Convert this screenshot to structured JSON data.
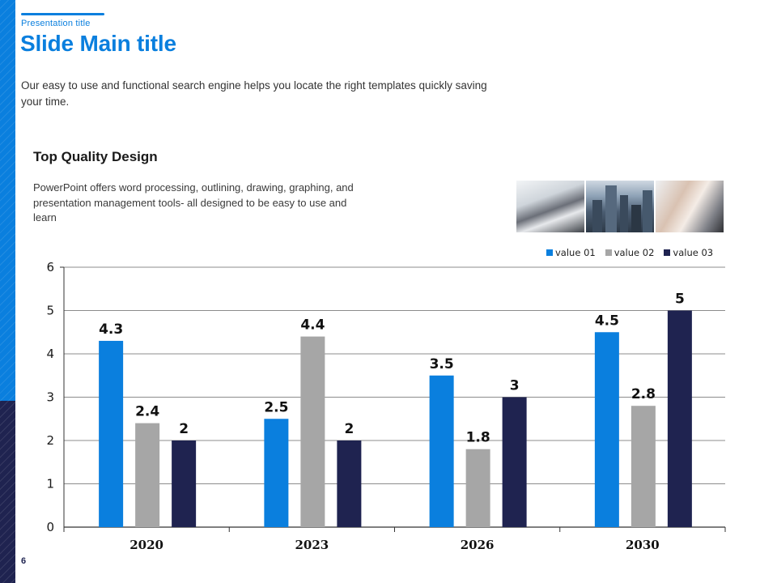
{
  "header": {
    "presentation_title": "Presentation title",
    "main_title": "Slide Main title",
    "intro_text": "Our easy to use and functional search engine helps you locate the right templates quickly saving your time."
  },
  "section": {
    "title": "Top Quality Design",
    "body": "PowerPoint offers word processing, outlining, drawing, graphing, and presentation management tools- all designed to be easy to use and learn"
  },
  "images": [
    "business-team-photo",
    "city-skyline-photo",
    "applause-photo"
  ],
  "page_number": "6",
  "colors": {
    "accent": "#0a7fde",
    "dark": "#1f2350",
    "gray": "#a6a6a6"
  },
  "chart_data": {
    "type": "bar",
    "title": "",
    "xlabel": "",
    "ylabel": "",
    "categories": [
      "2020",
      "2023",
      "2026",
      "2030"
    ],
    "series": [
      {
        "name": "value 01",
        "color": "#0a7fde",
        "values": [
          4.3,
          2.5,
          3.5,
          4.5
        ]
      },
      {
        "name": "value 02",
        "color": "#a6a6a6",
        "values": [
          2.4,
          4.4,
          1.8,
          2.8
        ]
      },
      {
        "name": "value 03",
        "color": "#1f2350",
        "values": [
          2,
          2,
          3,
          5
        ]
      }
    ],
    "ylim": [
      0,
      6
    ],
    "yticks": [
      "0",
      "1",
      "2",
      "3",
      "4",
      "5",
      "6"
    ],
    "grid": true,
    "data_labels": true,
    "legend_position": "top-right"
  }
}
